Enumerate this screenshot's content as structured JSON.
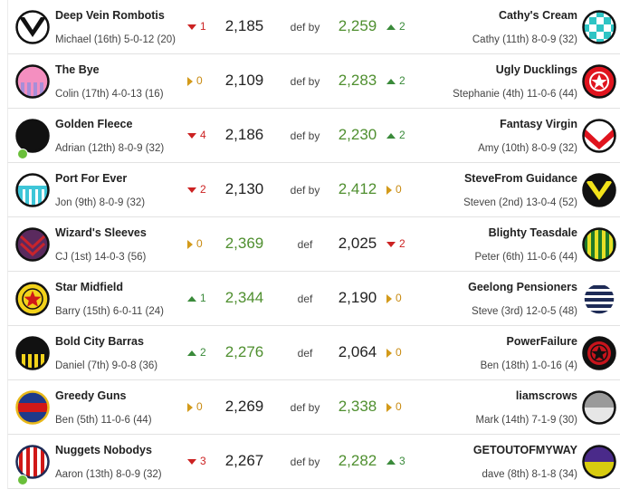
{
  "matches": [
    {
      "home": {
        "team": "Deep Vein Rombotis",
        "coach": "Michael (16th) 5-0-12 (20)",
        "score": "2,185",
        "movement": "1",
        "direction": "down",
        "online": false
      },
      "result": "def by",
      "away": {
        "team": "Cathy's Cream",
        "coach": "Cathy (11th) 8-0-9 (32)",
        "score": "2,259",
        "movement": "2",
        "direction": "up",
        "online": false
      },
      "winner": "away",
      "home_guernsey": {
        "style": "vee",
        "bg": "#ffffff",
        "fg": "#111111",
        "ring": "#111111"
      },
      "away_guernsey": {
        "style": "checker",
        "bg": "#ffffff",
        "fg": "#2ec4c4",
        "ring": "#111111"
      }
    },
    {
      "home": {
        "team": "The Bye",
        "coach": "Colin (17th) 4-0-13 (16)",
        "score": "2,109",
        "movement": "0",
        "direction": "same",
        "online": false
      },
      "result": "def by",
      "away": {
        "team": "Ugly Ducklings",
        "coach": "Stephanie (4th) 11-0-6 (44)",
        "score": "2,283",
        "movement": "2",
        "direction": "up",
        "online": false
      },
      "winner": "away",
      "home_guernsey": {
        "style": "pinkstripes",
        "bg": "#f48fc0",
        "fg": "#a88ed8",
        "ring": "#111111"
      },
      "away_guernsey": {
        "style": "star",
        "bg": "#e0141e",
        "fg": "#ffffff",
        "ring": "#111111"
      }
    },
    {
      "home": {
        "team": "Golden Fleece",
        "coach": "Adrian (12th) 8-0-9 (32)",
        "score": "2,186",
        "movement": "4",
        "direction": "down",
        "online": true
      },
      "result": "def by",
      "away": {
        "team": "Fantasy Virgin",
        "coach": "Amy (10th) 8-0-9 (32)",
        "score": "2,230",
        "movement": "2",
        "direction": "up",
        "online": false
      },
      "winner": "away",
      "home_guernsey": {
        "style": "plain",
        "bg": "#111111",
        "fg": "#111111",
        "ring": "#111111"
      },
      "away_guernsey": {
        "style": "redvee",
        "bg": "#ffffff",
        "fg": "#e0141e",
        "ring": "#111111"
      }
    },
    {
      "home": {
        "team": "Port For Ever",
        "coach": "Jon (9th) 8-0-9 (32)",
        "score": "2,130",
        "movement": "2",
        "direction": "down",
        "online": false
      },
      "result": "def by",
      "away": {
        "team": "SteveFrom Guidance",
        "coach": "Steven (2nd) 13-0-4 (52)",
        "score": "2,412",
        "movement": "0",
        "direction": "same",
        "online": false
      },
      "winner": "away",
      "home_guernsey": {
        "style": "tealstripes",
        "bg": "#ffffff",
        "fg": "#3ec6d8",
        "ring": "#111111"
      },
      "away_guernsey": {
        "style": "yellowvee",
        "bg": "#111111",
        "fg": "#f2e21a",
        "ring": "#111111"
      }
    },
    {
      "home": {
        "team": "Wizard's Sleeves",
        "coach": "CJ (1st) 14-0-3 (56)",
        "score": "2,369",
        "movement": "0",
        "direction": "same",
        "online": false
      },
      "result": "def",
      "away": {
        "team": "Blighty Teasdale",
        "coach": "Peter (6th) 11-0-6 (44)",
        "score": "2,025",
        "movement": "2",
        "direction": "down",
        "online": false
      },
      "winner": "home",
      "home_guernsey": {
        "style": "chevrons",
        "bg": "#5a2a5e",
        "fg": "#c8242c",
        "ring": "#111111"
      },
      "away_guernsey": {
        "style": "greenyellow",
        "bg": "#e8e026",
        "fg": "#1f7a2a",
        "ring": "#111111"
      }
    },
    {
      "home": {
        "team": "Star Midfield",
        "coach": "Barry (15th) 6-0-11 (24)",
        "score": "2,344",
        "movement": "1",
        "direction": "up",
        "online": false
      },
      "result": "def",
      "away": {
        "team": "Geelong Pensioners",
        "coach": "Steve (3rd) 12-0-5 (48)",
        "score": "2,190",
        "movement": "0",
        "direction": "same",
        "online": false
      },
      "winner": "home",
      "home_guernsey": {
        "style": "yellowstar",
        "bg": "#f2d21a",
        "fg": "#d01818",
        "ring": "#111111"
      },
      "away_guernsey": {
        "style": "hoops",
        "bg": "#ffffff",
        "fg": "#1e2b56",
        "ring": "#ffffff"
      }
    },
    {
      "home": {
        "team": "Bold City Barras",
        "coach": "Daniel (7th) 9-0-8 (36)",
        "score": "2,276",
        "movement": "2",
        "direction": "up",
        "online": false
      },
      "result": "def",
      "away": {
        "team": "PowerFailure",
        "coach": "Ben (18th) 1-0-16 (4)",
        "score": "2,064",
        "movement": "0",
        "direction": "same",
        "online": false
      },
      "winner": "home",
      "home_guernsey": {
        "style": "blackyellow",
        "bg": "#111111",
        "fg": "#f2d21a",
        "ring": "#111111"
      },
      "away_guernsey": {
        "style": "redstar",
        "bg": "#c8141c",
        "fg": "#111111",
        "ring": "#111111"
      }
    },
    {
      "home": {
        "team": "Greedy Guns",
        "coach": "Ben (5th) 11-0-6 (44)",
        "score": "2,269",
        "movement": "0",
        "direction": "same",
        "online": false
      },
      "result": "def by",
      "away": {
        "team": "liamscrows",
        "coach": "Mark (14th) 7-1-9 (30)",
        "score": "2,338",
        "movement": "0",
        "direction": "same",
        "online": false
      },
      "winner": "away",
      "home_guernsey": {
        "style": "bluered",
        "bg": "#1e3a8a",
        "fg": "#d01818",
        "ring": "#e8b81a"
      },
      "away_guernsey": {
        "style": "greyhalf",
        "bg": "#e6e6e6",
        "fg": "#555555",
        "ring": "#111111"
      }
    },
    {
      "home": {
        "team": "Nuggets Nobodys",
        "coach": "Aaron (13th) 8-0-9 (32)",
        "score": "2,267",
        "movement": "3",
        "direction": "down",
        "online": true
      },
      "result": "def by",
      "away": {
        "team": "GETOUTOFMYWAY",
        "coach": "dave (8th) 8-1-8 (34)",
        "score": "2,282",
        "movement": "3",
        "direction": "up",
        "online": false
      },
      "winner": "away",
      "home_guernsey": {
        "style": "redwhite",
        "bg": "#ffffff",
        "fg": "#d01818",
        "ring": "#1e2b56"
      },
      "away_guernsey": {
        "style": "purpleyellow",
        "bg": "#4a2a8a",
        "fg": "#d8cc10",
        "ring": "#111111"
      }
    }
  ]
}
